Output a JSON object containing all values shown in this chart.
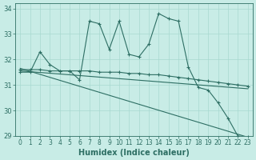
{
  "xlabel": "Humidex (Indice chaleur)",
  "xlim": [
    -0.5,
    23.5
  ],
  "ylim": [
    29,
    34.2
  ],
  "yticks": [
    29,
    30,
    31,
    32,
    33,
    34
  ],
  "xticks": [
    0,
    1,
    2,
    3,
    4,
    5,
    6,
    7,
    8,
    9,
    10,
    11,
    12,
    13,
    14,
    15,
    16,
    17,
    18,
    19,
    20,
    21,
    22,
    23
  ],
  "bg_color": "#c8ece6",
  "line_color": "#2d6e63",
  "grid_color": "#a8d8d0",
  "line1_x": [
    0,
    1,
    2,
    3,
    4,
    5,
    6,
    7,
    8,
    9,
    10,
    11,
    12,
    13,
    14,
    15,
    16,
    17,
    18,
    19,
    20,
    21,
    22,
    23
  ],
  "line1_y": [
    31.5,
    31.5,
    32.3,
    31.8,
    31.55,
    31.55,
    31.2,
    33.5,
    33.4,
    32.4,
    33.5,
    32.2,
    32.1,
    32.6,
    33.8,
    33.6,
    33.5,
    31.7,
    30.9,
    30.8,
    30.3,
    29.7,
    29.0,
    28.95
  ],
  "line2_x": [
    0,
    1,
    2,
    3,
    4,
    5,
    6,
    7,
    8,
    9,
    10,
    11,
    12,
    13,
    14,
    15,
    16,
    17,
    18,
    19,
    20,
    21,
    22,
    23
  ],
  "line2_y": [
    31.6,
    31.6,
    31.6,
    31.55,
    31.55,
    31.55,
    31.55,
    31.55,
    31.5,
    31.5,
    31.5,
    31.45,
    31.45,
    31.4,
    31.4,
    31.35,
    31.3,
    31.25,
    31.2,
    31.15,
    31.1,
    31.05,
    31.0,
    30.95
  ],
  "line3_x": [
    0,
    23
  ],
  "line3_y": [
    31.55,
    30.85
  ],
  "line4_x": [
    0,
    23
  ],
  "line4_y": [
    31.65,
    28.95
  ]
}
